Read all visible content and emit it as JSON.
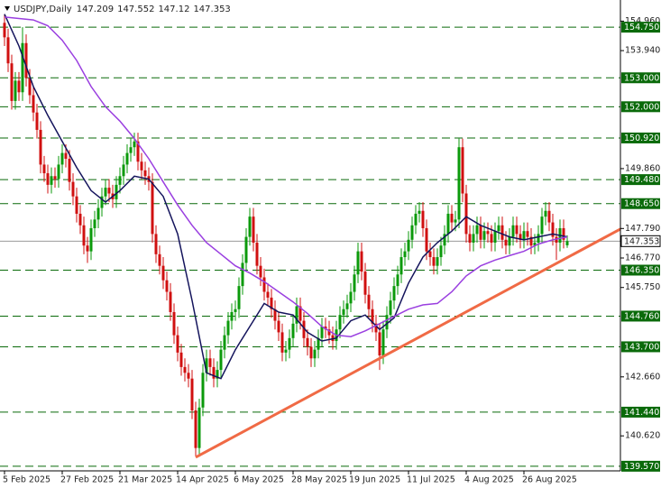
{
  "chart_data": {
    "type": "candlestick",
    "title": "USDJPY,Daily",
    "up_color": "#0b9a0b",
    "down_color": "#d01010",
    "level_color": "#0a6a0a",
    "xlim": [
      -1.25,
      170.75
    ],
    "ylim": [
      139.41,
      155.69
    ],
    "xticks": [
      {
        "value": 0,
        "label": "5 Feb 2025"
      },
      {
        "value": 16,
        "label": "27 Feb 2025"
      },
      {
        "value": 32,
        "label": "21 Mar 2025"
      },
      {
        "value": 48,
        "label": "14 Apr 2025"
      },
      {
        "value": 64,
        "label": "6 May 2025"
      },
      {
        "value": 80,
        "label": "28 May 2025"
      },
      {
        "value": 96,
        "label": "19 Jun 2025"
      },
      {
        "value": 112,
        "label": "11 Jul 2025"
      },
      {
        "value": 128,
        "label": "4 Aug 2025"
      },
      {
        "value": 144,
        "label": "26 Aug 2025"
      }
    ],
    "yticks": [
      {
        "value": 154.96,
        "label": "154.960"
      },
      {
        "value": 153.94,
        "label": "153.940"
      },
      {
        "value": 149.86,
        "label": "149.860"
      },
      {
        "value": 147.79,
        "label": "147.790"
      },
      {
        "value": 146.77,
        "label": "146.770"
      },
      {
        "value": 145.75,
        "label": "145.750"
      },
      {
        "value": 142.66,
        "label": "142.660"
      },
      {
        "value": 140.62,
        "label": "140.620"
      }
    ],
    "levels": [
      {
        "value": 154.75,
        "label": "154.750"
      },
      {
        "value": 153,
        "label": "153.000"
      },
      {
        "value": 152,
        "label": "152.000"
      },
      {
        "value": 150.92,
        "label": "150.920"
      },
      {
        "value": 149.48,
        "label": "149.480"
      },
      {
        "value": 148.65,
        "label": "148.650"
      },
      {
        "value": 146.35,
        "label": "146.350"
      },
      {
        "value": 144.76,
        "label": "144.760"
      },
      {
        "value": 143.7,
        "label": "143.700"
      },
      {
        "value": 141.44,
        "label": "141.440"
      },
      {
        "value": 139.57,
        "label": "139.570"
      }
    ],
    "candles": [
      [
        154.9,
        155.2,
        154.1,
        154.4
      ],
      [
        154.4,
        154.7,
        153.2,
        153.5
      ],
      [
        153.5,
        153.8,
        151.9,
        152.2
      ],
      [
        152.2,
        153.2,
        151.9,
        152.9
      ],
      [
        152.9,
        153.2,
        152.2,
        152.5
      ],
      [
        152.5,
        154.75,
        152.2,
        154.2
      ],
      [
        154.2,
        154.5,
        152.7,
        153.0
      ],
      [
        153.0,
        153.3,
        152.1,
        152.4
      ],
      [
        152.4,
        152.7,
        151.5,
        151.8
      ],
      [
        151.8,
        152.1,
        150.9,
        151.2
      ],
      [
        151.2,
        151.5,
        149.7,
        150.0
      ],
      [
        150.0,
        150.3,
        149.4,
        149.7
      ],
      [
        149.7,
        150.0,
        149.0,
        149.3
      ],
      [
        149.3,
        149.9,
        149.0,
        149.6
      ],
      [
        149.6,
        149.9,
        149.2,
        149.5
      ],
      [
        149.5,
        150.3,
        149.2,
        150.0
      ],
      [
        150.0,
        150.7,
        149.7,
        150.4
      ],
      [
        150.4,
        150.7,
        149.9,
        150.2
      ],
      [
        150.2,
        150.5,
        149.1,
        149.4
      ],
      [
        149.4,
        149.7,
        148.6,
        148.9
      ],
      [
        148.9,
        149.2,
        148.0,
        148.3
      ],
      [
        148.3,
        148.6,
        147.6,
        147.9
      ],
      [
        147.9,
        148.2,
        146.9,
        147.2
      ],
      [
        147.2,
        147.5,
        146.6,
        147.0
      ],
      [
        147.0,
        148.1,
        146.7,
        147.8
      ],
      [
        147.8,
        148.4,
        147.5,
        148.1
      ],
      [
        148.1,
        148.8,
        147.8,
        148.5
      ],
      [
        148.5,
        149.2,
        148.2,
        148.9
      ],
      [
        148.9,
        149.5,
        148.6,
        149.2
      ],
      [
        149.2,
        149.5,
        148.7,
        149.0
      ],
      [
        149.0,
        149.3,
        148.5,
        148.8
      ],
      [
        148.8,
        149.6,
        148.5,
        149.3
      ],
      [
        149.3,
        149.9,
        149.0,
        149.6
      ],
      [
        149.6,
        150.3,
        149.3,
        150.0
      ],
      [
        150.0,
        150.7,
        149.7,
        150.4
      ],
      [
        150.4,
        150.9,
        150.1,
        150.6
      ],
      [
        150.6,
        151.1,
        150.3,
        150.8
      ],
      [
        150.8,
        151.1,
        149.8,
        150.1
      ],
      [
        150.1,
        150.4,
        149.5,
        149.8
      ],
      [
        149.8,
        150.1,
        149.3,
        149.6
      ],
      [
        149.6,
        149.9,
        149.1,
        149.4
      ],
      [
        149.4,
        149.7,
        147.3,
        147.6
      ],
      [
        147.6,
        147.9,
        146.6,
        146.9
      ],
      [
        146.9,
        147.2,
        146.2,
        146.5
      ],
      [
        146.5,
        146.8,
        145.7,
        146.0
      ],
      [
        146.0,
        146.3,
        145.3,
        145.6
      ],
      [
        145.6,
        145.9,
        144.6,
        144.9
      ],
      [
        144.9,
        145.2,
        143.8,
        144.1
      ],
      [
        144.1,
        144.4,
        143.2,
        143.5
      ],
      [
        143.5,
        143.8,
        142.7,
        143.0
      ],
      [
        143.0,
        143.3,
        142.5,
        142.8
      ],
      [
        142.8,
        143.1,
        142.3,
        142.6
      ],
      [
        142.6,
        142.9,
        141.2,
        141.5
      ],
      [
        141.5,
        141.8,
        139.9,
        140.2
      ],
      [
        140.2,
        141.9,
        139.9,
        141.6
      ],
      [
        141.6,
        143.1,
        141.3,
        142.8
      ],
      [
        142.8,
        143.6,
        142.5,
        143.3
      ],
      [
        143.3,
        143.6,
        142.7,
        143.0
      ],
      [
        143.0,
        143.3,
        142.3,
        142.6
      ],
      [
        142.6,
        143.2,
        142.3,
        142.9
      ],
      [
        142.9,
        143.9,
        142.6,
        143.6
      ],
      [
        143.6,
        144.4,
        143.3,
        144.1
      ],
      [
        144.1,
        144.9,
        143.8,
        144.6
      ],
      [
        144.6,
        145.2,
        144.3,
        144.9
      ],
      [
        144.9,
        145.3,
        144.6,
        145.0
      ],
      [
        145.0,
        146.1,
        144.7,
        145.8
      ],
      [
        145.8,
        146.9,
        145.5,
        146.6
      ],
      [
        146.6,
        147.8,
        146.3,
        147.5
      ],
      [
        147.5,
        148.5,
        147.2,
        148.2
      ],
      [
        148.2,
        148.5,
        147.0,
        147.3
      ],
      [
        147.3,
        147.6,
        146.2,
        146.5
      ],
      [
        146.5,
        146.8,
        145.8,
        146.1
      ],
      [
        146.1,
        146.4,
        145.3,
        145.6
      ],
      [
        145.6,
        145.9,
        145.1,
        145.4
      ],
      [
        145.4,
        145.7,
        144.7,
        145.0
      ],
      [
        145.0,
        145.3,
        144.3,
        144.6
      ],
      [
        144.6,
        144.9,
        143.9,
        144.2
      ],
      [
        144.2,
        144.5,
        143.2,
        143.5
      ],
      [
        143.5,
        143.9,
        143.2,
        143.6
      ],
      [
        143.6,
        144.3,
        143.3,
        144.0
      ],
      [
        144.0,
        144.8,
        143.7,
        144.5
      ],
      [
        144.5,
        145.4,
        144.2,
        145.1
      ],
      [
        145.1,
        145.4,
        144.3,
        144.6
      ],
      [
        144.6,
        144.9,
        143.7,
        144.0
      ],
      [
        144.0,
        144.3,
        143.4,
        143.7
      ],
      [
        143.7,
        144.0,
        143.0,
        143.3
      ],
      [
        143.3,
        143.9,
        143.0,
        143.6
      ],
      [
        143.6,
        144.3,
        143.3,
        144.0
      ],
      [
        144.0,
        144.7,
        143.7,
        144.4
      ],
      [
        144.4,
        144.7,
        144.0,
        144.3
      ],
      [
        144.3,
        144.6,
        143.8,
        144.1
      ],
      [
        144.1,
        144.4,
        143.6,
        143.9
      ],
      [
        143.9,
        144.6,
        143.6,
        144.3
      ],
      [
        144.3,
        145.1,
        144.0,
        144.8
      ],
      [
        144.8,
        145.3,
        144.5,
        145.0
      ],
      [
        145.0,
        145.5,
        144.7,
        145.2
      ],
      [
        145.2,
        145.9,
        144.9,
        145.6
      ],
      [
        145.6,
        146.5,
        145.3,
        146.2
      ],
      [
        146.2,
        147.3,
        145.9,
        147.0
      ],
      [
        147.0,
        147.3,
        146.0,
        146.3
      ],
      [
        146.3,
        146.6,
        145.2,
        145.5
      ],
      [
        145.5,
        145.8,
        144.7,
        145.0
      ],
      [
        145.0,
        145.3,
        144.2,
        144.5
      ],
      [
        144.5,
        144.8,
        143.9,
        144.2
      ],
      [
        144.2,
        144.5,
        142.9,
        143.4
      ],
      [
        143.4,
        144.6,
        143.1,
        144.3
      ],
      [
        144.3,
        145.1,
        144.0,
        144.8
      ],
      [
        144.8,
        145.6,
        144.5,
        145.3
      ],
      [
        145.3,
        146.1,
        145.0,
        145.8
      ],
      [
        145.8,
        146.5,
        145.5,
        146.2
      ],
      [
        146.2,
        147.1,
        145.9,
        146.8
      ],
      [
        146.8,
        147.3,
        146.5,
        147.0
      ],
      [
        147.0,
        147.7,
        146.7,
        147.4
      ],
      [
        147.4,
        148.2,
        147.1,
        147.9
      ],
      [
        147.9,
        148.6,
        147.6,
        148.3
      ],
      [
        148.3,
        148.7,
        148.0,
        148.4
      ],
      [
        148.4,
        148.7,
        147.5,
        147.8
      ],
      [
        147.8,
        148.1,
        146.7,
        147.0
      ],
      [
        147.0,
        147.3,
        146.5,
        146.8
      ],
      [
        146.8,
        147.1,
        146.2,
        146.5
      ],
      [
        146.5,
        147.1,
        146.2,
        146.8
      ],
      [
        146.8,
        147.5,
        146.5,
        147.2
      ],
      [
        147.2,
        147.9,
        146.9,
        147.6
      ],
      [
        147.6,
        148.6,
        147.3,
        148.3
      ],
      [
        148.3,
        148.6,
        147.7,
        148.0
      ],
      [
        148.0,
        148.4,
        147.7,
        148.1
      ],
      [
        148.1,
        150.9,
        147.8,
        150.6
      ],
      [
        150.6,
        150.9,
        148.7,
        149.0
      ],
      [
        149.0,
        149.3,
        147.3,
        147.6
      ],
      [
        147.6,
        147.9,
        147.0,
        147.3
      ],
      [
        147.3,
        147.9,
        147.0,
        147.6
      ],
      [
        147.6,
        148.2,
        147.3,
        147.9
      ],
      [
        147.9,
        148.2,
        147.1,
        147.4
      ],
      [
        147.4,
        148.0,
        147.1,
        147.7
      ],
      [
        147.7,
        148.0,
        147.3,
        147.6
      ],
      [
        147.6,
        147.9,
        147.0,
        147.3
      ],
      [
        147.3,
        148.0,
        147.0,
        147.7
      ],
      [
        147.7,
        148.2,
        147.4,
        147.9
      ],
      [
        147.9,
        148.2,
        147.1,
        147.4
      ],
      [
        147.4,
        147.7,
        146.9,
        147.2
      ],
      [
        147.2,
        147.8,
        146.9,
        147.5
      ],
      [
        147.5,
        148.2,
        147.2,
        147.9
      ],
      [
        147.9,
        148.2,
        147.3,
        147.6
      ],
      [
        147.6,
        147.9,
        147.1,
        147.4
      ],
      [
        147.4,
        148.0,
        147.1,
        147.7
      ],
      [
        147.7,
        148.0,
        147.2,
        147.5
      ],
      [
        147.5,
        147.8,
        146.9,
        147.2
      ],
      [
        147.2,
        147.6,
        146.9,
        147.3
      ],
      [
        147.3,
        147.9,
        147.0,
        147.6
      ],
      [
        147.6,
        148.5,
        147.3,
        148.2
      ],
      [
        148.2,
        148.7,
        147.9,
        148.4
      ],
      [
        148.4,
        148.7,
        147.7,
        148.0
      ],
      [
        148.0,
        148.3,
        147.2,
        147.5
      ],
      [
        147.5,
        147.8,
        146.7,
        147.3
      ],
      [
        147.3,
        148.1,
        147.0,
        147.8
      ],
      [
        147.8,
        148.1,
        147.1,
        147.4
      ],
      [
        147.209,
        147.552,
        147.12,
        147.353
      ]
    ],
    "series": [
      {
        "color": "#14145c",
        "x": [
          0,
          4,
          8,
          12,
          16,
          20,
          24,
          28,
          32,
          36,
          40,
          44,
          48,
          52,
          56,
          60,
          64,
          68,
          72,
          76,
          80,
          84,
          88,
          92,
          96,
          100,
          104,
          108,
          112,
          116,
          120,
          124,
          128,
          132,
          136,
          140,
          144,
          148,
          152,
          156
        ],
        "values": [
          155.2,
          154.1,
          152.7,
          151.7,
          150.8,
          149.9,
          149.1,
          148.7,
          149.1,
          149.6,
          149.5,
          148.9,
          147.6,
          145.3,
          142.8,
          142.6,
          143.6,
          144.4,
          145.2,
          144.9,
          144.8,
          144.2,
          143.9,
          144.0,
          144.6,
          144.8,
          144.3,
          144.7,
          145.9,
          146.8,
          147.3,
          147.7,
          148.2,
          147.9,
          147.7,
          147.5,
          147.4,
          147.5,
          147.6,
          147.5
        ]
      },
      {
        "color": "#9a3fe0",
        "x": [
          0,
          4,
          8,
          12,
          16,
          20,
          24,
          28,
          32,
          36,
          40,
          44,
          48,
          52,
          56,
          60,
          64,
          68,
          72,
          76,
          80,
          84,
          88,
          92,
          96,
          100,
          104,
          108,
          112,
          116,
          120,
          124,
          128,
          132,
          136,
          140,
          144,
          148,
          152,
          156
        ],
        "values": [
          155.1,
          155.05,
          155.0,
          154.8,
          154.3,
          153.6,
          152.7,
          152.0,
          151.5,
          150.9,
          150.2,
          149.4,
          148.6,
          147.9,
          147.3,
          146.9,
          146.5,
          146.25,
          145.95,
          145.6,
          145.25,
          144.85,
          144.4,
          144.1,
          144.05,
          144.25,
          144.5,
          144.75,
          145.0,
          145.15,
          145.2,
          145.6,
          146.15,
          146.5,
          146.7,
          146.85,
          147.0,
          147.25,
          147.4,
          147.5
        ]
      }
    ],
    "trendline": {
      "color": "#f06a45",
      "x": [
        53,
        170.75
      ],
      "values": [
        139.88,
        147.77
      ]
    }
  }
}
